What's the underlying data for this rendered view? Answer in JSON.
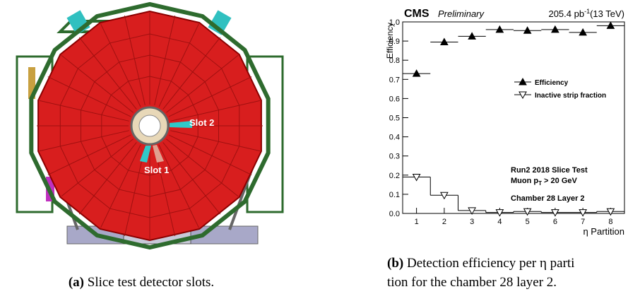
{
  "figure_a": {
    "slot_labels": [
      "Slot 2",
      "Slot 1"
    ],
    "caption": {
      "tag": "(a)",
      "text": "Slice test detector slots."
    }
  },
  "chart_data": {
    "type": "step-markers",
    "cms": "CMS",
    "preliminary": "Preliminary",
    "lumi": {
      "value": "205.4 pb",
      "sup": "-1",
      "rest": "(13 TeV)"
    },
    "ylabel": "Efficiency",
    "xlabel": "η Partition",
    "x": [
      1,
      2,
      3,
      4,
      5,
      6,
      7,
      8
    ],
    "xlim": [
      0.5,
      8.5
    ],
    "xticks": [
      1,
      2,
      3,
      4,
      5,
      6,
      7,
      8
    ],
    "ylim": [
      0,
      1
    ],
    "yticks": [
      {
        "value": 0,
        "label": "0.0"
      },
      0.1,
      0.2,
      0.3,
      0.4,
      0.5,
      0.6,
      0.7,
      0.8,
      0.9,
      {
        "value": 1,
        "label": "1.0"
      }
    ],
    "series": [
      {
        "name": "Efficiency",
        "color": "#000000",
        "marker": "filled-up",
        "values": [
          0.73,
          0.895,
          0.925,
          0.96,
          0.955,
          0.96,
          0.945,
          0.98
        ]
      },
      {
        "name": "Inactive strip fraction",
        "color": "#000000",
        "marker": "open-down",
        "values": [
          0.19,
          0.095,
          0.015,
          0.005,
          0.01,
          0.005,
          0.005,
          0.01
        ]
      }
    ],
    "annotations": {
      "line1": "Run2 2018 Slice Test",
      "line2": {
        "pre": "Muon p",
        "sub": "T",
        "post": " > 20 GeV"
      },
      "line3": "Chamber 28 Layer 2"
    },
    "caption": {
      "tag": "(b)",
      "lines": [
        "Detection efficiency per η parti",
        "tion for the chamber 28 layer 2."
      ]
    }
  }
}
